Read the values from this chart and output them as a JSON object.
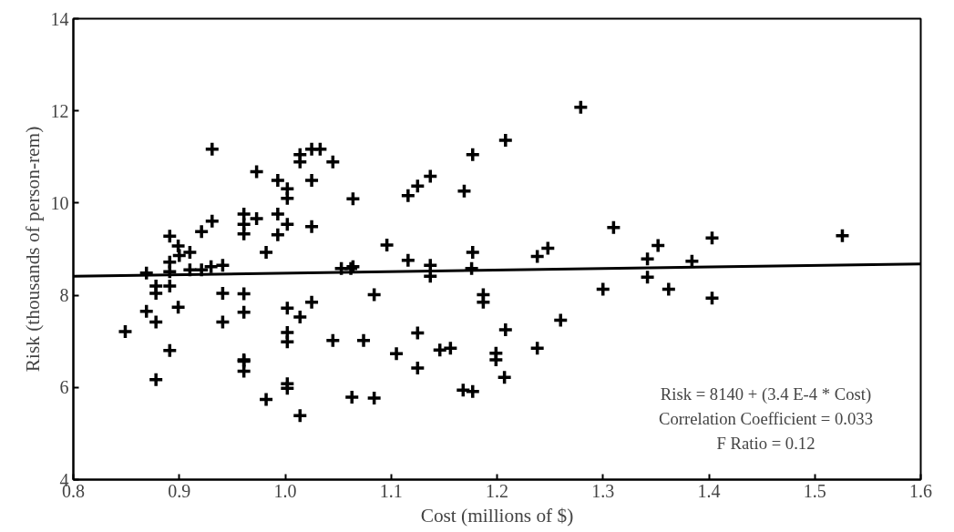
{
  "chart_data": {
    "type": "scatter",
    "xlabel": "Cost (millions of $)",
    "ylabel": "Risk (thousands of person-rem)",
    "xlim": [
      0.8,
      1.6
    ],
    "ylim": [
      4,
      14
    ],
    "xticks": [
      0.8,
      0.9,
      {
        "value": 1,
        "label": "1.0"
      },
      1.1,
      1.2,
      1.3,
      1.4,
      1.5,
      1.6
    ],
    "yticks": [
      4,
      6,
      8,
      10,
      12,
      14
    ],
    "grid": false,
    "series": [
      {
        "marker": "cross",
        "color": "#000000",
        "x": [
          0.931,
          1.014,
          1.014,
          1.025,
          1.033,
          1.045,
          0.973,
          0.993,
          1.002,
          1.002,
          1.025,
          0.961,
          0.961,
          0.961,
          0.973,
          0.993,
          0.993,
          1.002,
          1.025,
          0.931,
          0.921,
          0.891,
          0.899,
          0.91,
          0.9,
          0.982,
          0.891,
          0.869,
          0.891,
          0.91,
          0.921,
          0.93,
          0.941,
          1.053,
          1.062,
          0.878,
          0.878,
          0.891,
          0.941,
          0.961,
          0.869,
          0.878,
          0.899,
          0.941,
          0.961,
          1.002,
          1.014,
          1.025,
          1.002,
          1.002,
          1.045,
          0.849,
          0.891,
          0.961,
          0.961,
          0.961,
          0.878,
          1.002,
          1.002,
          0.982,
          1.014,
          1.063,
          1.279,
          1.208,
          1.177,
          1.137,
          1.125,
          1.116,
          1.169,
          1.064,
          1.31,
          1.096,
          1.116,
          1.137,
          1.137,
          1.177,
          1.176,
          1.248,
          1.238,
          1.064,
          1.084,
          1.187,
          1.187,
          1.3,
          1.26,
          1.208,
          1.125,
          1.074,
          1.105,
          1.146,
          1.156,
          1.199,
          1.199,
          1.238,
          1.125,
          1.207,
          1.084,
          1.168,
          1.177,
          1.352,
          1.342,
          1.342,
          1.403,
          1.384,
          1.362,
          1.403,
          1.526
        ],
        "values": [
          11.17,
          11.05,
          10.89,
          11.17,
          11.17,
          10.89,
          10.68,
          10.49,
          10.31,
          10.1,
          10.49,
          9.76,
          9.54,
          9.33,
          9.66,
          9.76,
          9.31,
          9.54,
          9.49,
          9.61,
          9.38,
          9.28,
          9.07,
          8.93,
          8.86,
          8.93,
          8.72,
          8.48,
          8.51,
          8.55,
          8.55,
          8.62,
          8.65,
          8.58,
          8.58,
          8.2,
          8.04,
          8.2,
          8.04,
          8.03,
          7.65,
          7.42,
          7.74,
          7.42,
          7.63,
          7.72,
          7.53,
          7.85,
          7.19,
          6.99,
          7.02,
          7.21,
          6.8,
          6.6,
          6.57,
          6.35,
          6.17,
          6.08,
          5.98,
          5.74,
          5.39,
          5.79,
          12.08,
          11.36,
          11.05,
          10.58,
          10.37,
          10.16,
          10.26,
          10.09,
          9.47,
          9.09,
          8.76,
          8.65,
          8.41,
          8.93,
          8.58,
          9.02,
          8.84,
          8.62,
          8.01,
          8.01,
          7.85,
          8.13,
          7.46,
          7.25,
          7.18,
          7.02,
          6.73,
          6.81,
          6.85,
          6.74,
          6.6,
          6.85,
          6.42,
          6.22,
          5.77,
          5.94,
          5.91,
          9.08,
          8.79,
          8.39,
          9.24,
          8.74,
          8.13,
          7.94,
          9.29
        ]
      },
      {
        "type": "line",
        "color": "#000000",
        "x": [
          0.8,
          1.6
        ],
        "values": [
          8.41,
          8.68
        ]
      }
    ],
    "annotations": [
      "Risk = 8140 + (3.4 E-4 * Cost)",
      "Correlation Coefficient = 0.033",
      "F Ratio = 0.12"
    ]
  }
}
